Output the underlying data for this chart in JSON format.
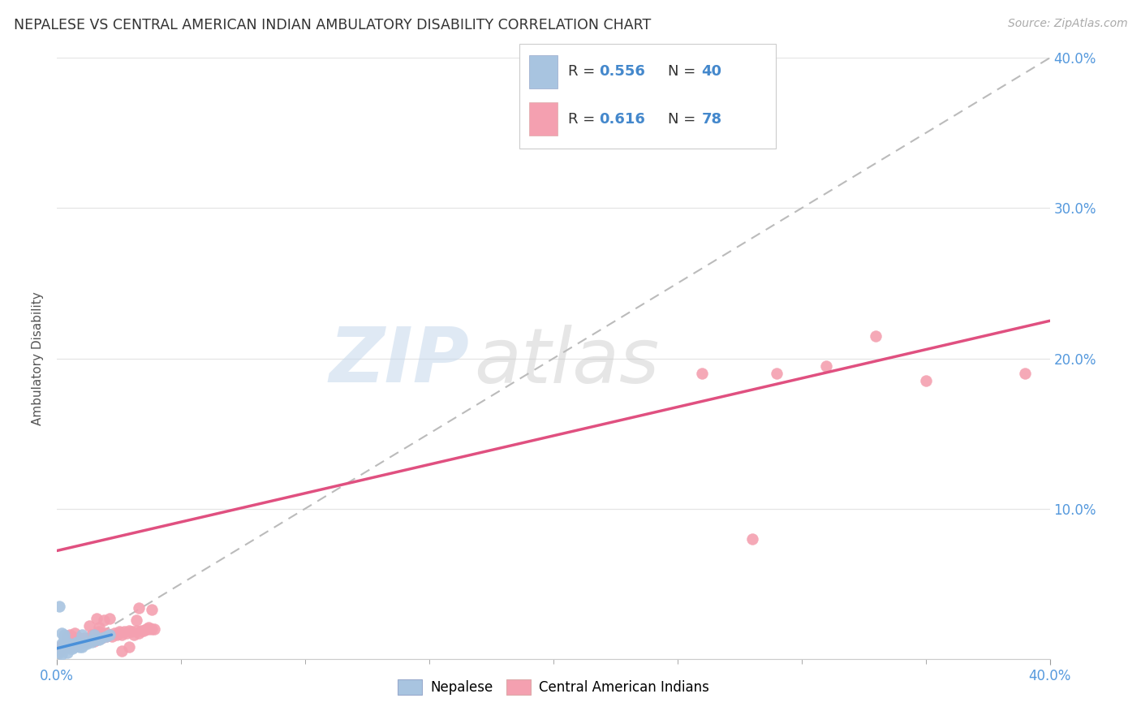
{
  "title": "NEPALESE VS CENTRAL AMERICAN INDIAN AMBULATORY DISABILITY CORRELATION CHART",
  "source": "Source: ZipAtlas.com",
  "ylabel": "Ambulatory Disability",
  "xlim": [
    0.0,
    0.4
  ],
  "ylim": [
    0.0,
    0.4
  ],
  "xtick_vals": [
    0.0,
    0.4
  ],
  "ytick_vals": [
    0.1,
    0.2,
    0.3,
    0.4
  ],
  "background_color": "#ffffff",
  "nepalese_color": "#a8c4e0",
  "central_american_color": "#f4a0b0",
  "nepalese_R": 0.556,
  "nepalese_N": 40,
  "central_american_R": 0.616,
  "central_american_N": 78,
  "nepalese_line_color": "#4a90d9",
  "central_american_line_color": "#e05080",
  "dashed_line_color": "#bbbbbb",
  "watermark_zip": "ZIP",
  "watermark_atlas": "atlas",
  "nepalese_x": [
    0.001,
    0.002,
    0.002,
    0.003,
    0.003,
    0.004,
    0.004,
    0.005,
    0.005,
    0.006,
    0.006,
    0.007,
    0.007,
    0.007,
    0.008,
    0.008,
    0.009,
    0.009,
    0.01,
    0.01,
    0.01,
    0.011,
    0.012,
    0.013,
    0.014,
    0.015,
    0.015,
    0.016,
    0.017,
    0.018,
    0.02,
    0.021,
    0.003,
    0.003,
    0.004,
    0.006,
    0.002,
    0.001,
    0.008,
    0.005
  ],
  "nepalese_y": [
    0.035,
    0.003,
    0.01,
    0.007,
    0.009,
    0.008,
    0.01,
    0.009,
    0.007,
    0.009,
    0.008,
    0.009,
    0.01,
    0.008,
    0.01,
    0.009,
    0.008,
    0.01,
    0.009,
    0.008,
    0.016,
    0.01,
    0.01,
    0.012,
    0.011,
    0.013,
    0.016,
    0.013,
    0.013,
    0.014,
    0.015,
    0.016,
    0.014,
    0.016,
    0.004,
    0.007,
    0.017,
    0.004,
    0.011,
    0.01
  ],
  "central_american_x": [
    0.001,
    0.002,
    0.002,
    0.003,
    0.003,
    0.004,
    0.004,
    0.005,
    0.005,
    0.006,
    0.006,
    0.007,
    0.007,
    0.008,
    0.008,
    0.009,
    0.01,
    0.01,
    0.011,
    0.011,
    0.012,
    0.013,
    0.013,
    0.014,
    0.014,
    0.015,
    0.015,
    0.016,
    0.016,
    0.017,
    0.017,
    0.018,
    0.019,
    0.02,
    0.02,
    0.021,
    0.022,
    0.023,
    0.024,
    0.025,
    0.025,
    0.026,
    0.027,
    0.028,
    0.029,
    0.03,
    0.031,
    0.032,
    0.033,
    0.034,
    0.035,
    0.036,
    0.037,
    0.038,
    0.039,
    0.004,
    0.005,
    0.006,
    0.007,
    0.009,
    0.013,
    0.016,
    0.017,
    0.019,
    0.021,
    0.026,
    0.029,
    0.032,
    0.033,
    0.037,
    0.038,
    0.39,
    0.31,
    0.29,
    0.33,
    0.26,
    0.35,
    0.28
  ],
  "central_american_y": [
    0.006,
    0.007,
    0.009,
    0.008,
    0.01,
    0.009,
    0.011,
    0.008,
    0.01,
    0.009,
    0.011,
    0.01,
    0.012,
    0.009,
    0.011,
    0.01,
    0.011,
    0.013,
    0.012,
    0.014,
    0.011,
    0.012,
    0.014,
    0.013,
    0.016,
    0.012,
    0.014,
    0.013,
    0.015,
    0.014,
    0.021,
    0.014,
    0.015,
    0.015,
    0.017,
    0.016,
    0.015,
    0.017,
    0.016,
    0.017,
    0.018,
    0.016,
    0.018,
    0.017,
    0.019,
    0.018,
    0.016,
    0.019,
    0.017,
    0.019,
    0.019,
    0.02,
    0.021,
    0.02,
    0.02,
    0.015,
    0.016,
    0.015,
    0.017,
    0.014,
    0.022,
    0.027,
    0.018,
    0.026,
    0.027,
    0.005,
    0.008,
    0.026,
    0.034,
    0.02,
    0.033,
    0.19,
    0.195,
    0.19,
    0.215,
    0.19,
    0.185,
    0.08
  ],
  "ca_line_x0": 0.0,
  "ca_line_y0": 0.072,
  "ca_line_x1": 0.4,
  "ca_line_y1": 0.225,
  "nep_line_x0": 0.0,
  "nep_line_y0": 0.007,
  "nep_line_x1": 0.022,
  "nep_line_y1": 0.016
}
